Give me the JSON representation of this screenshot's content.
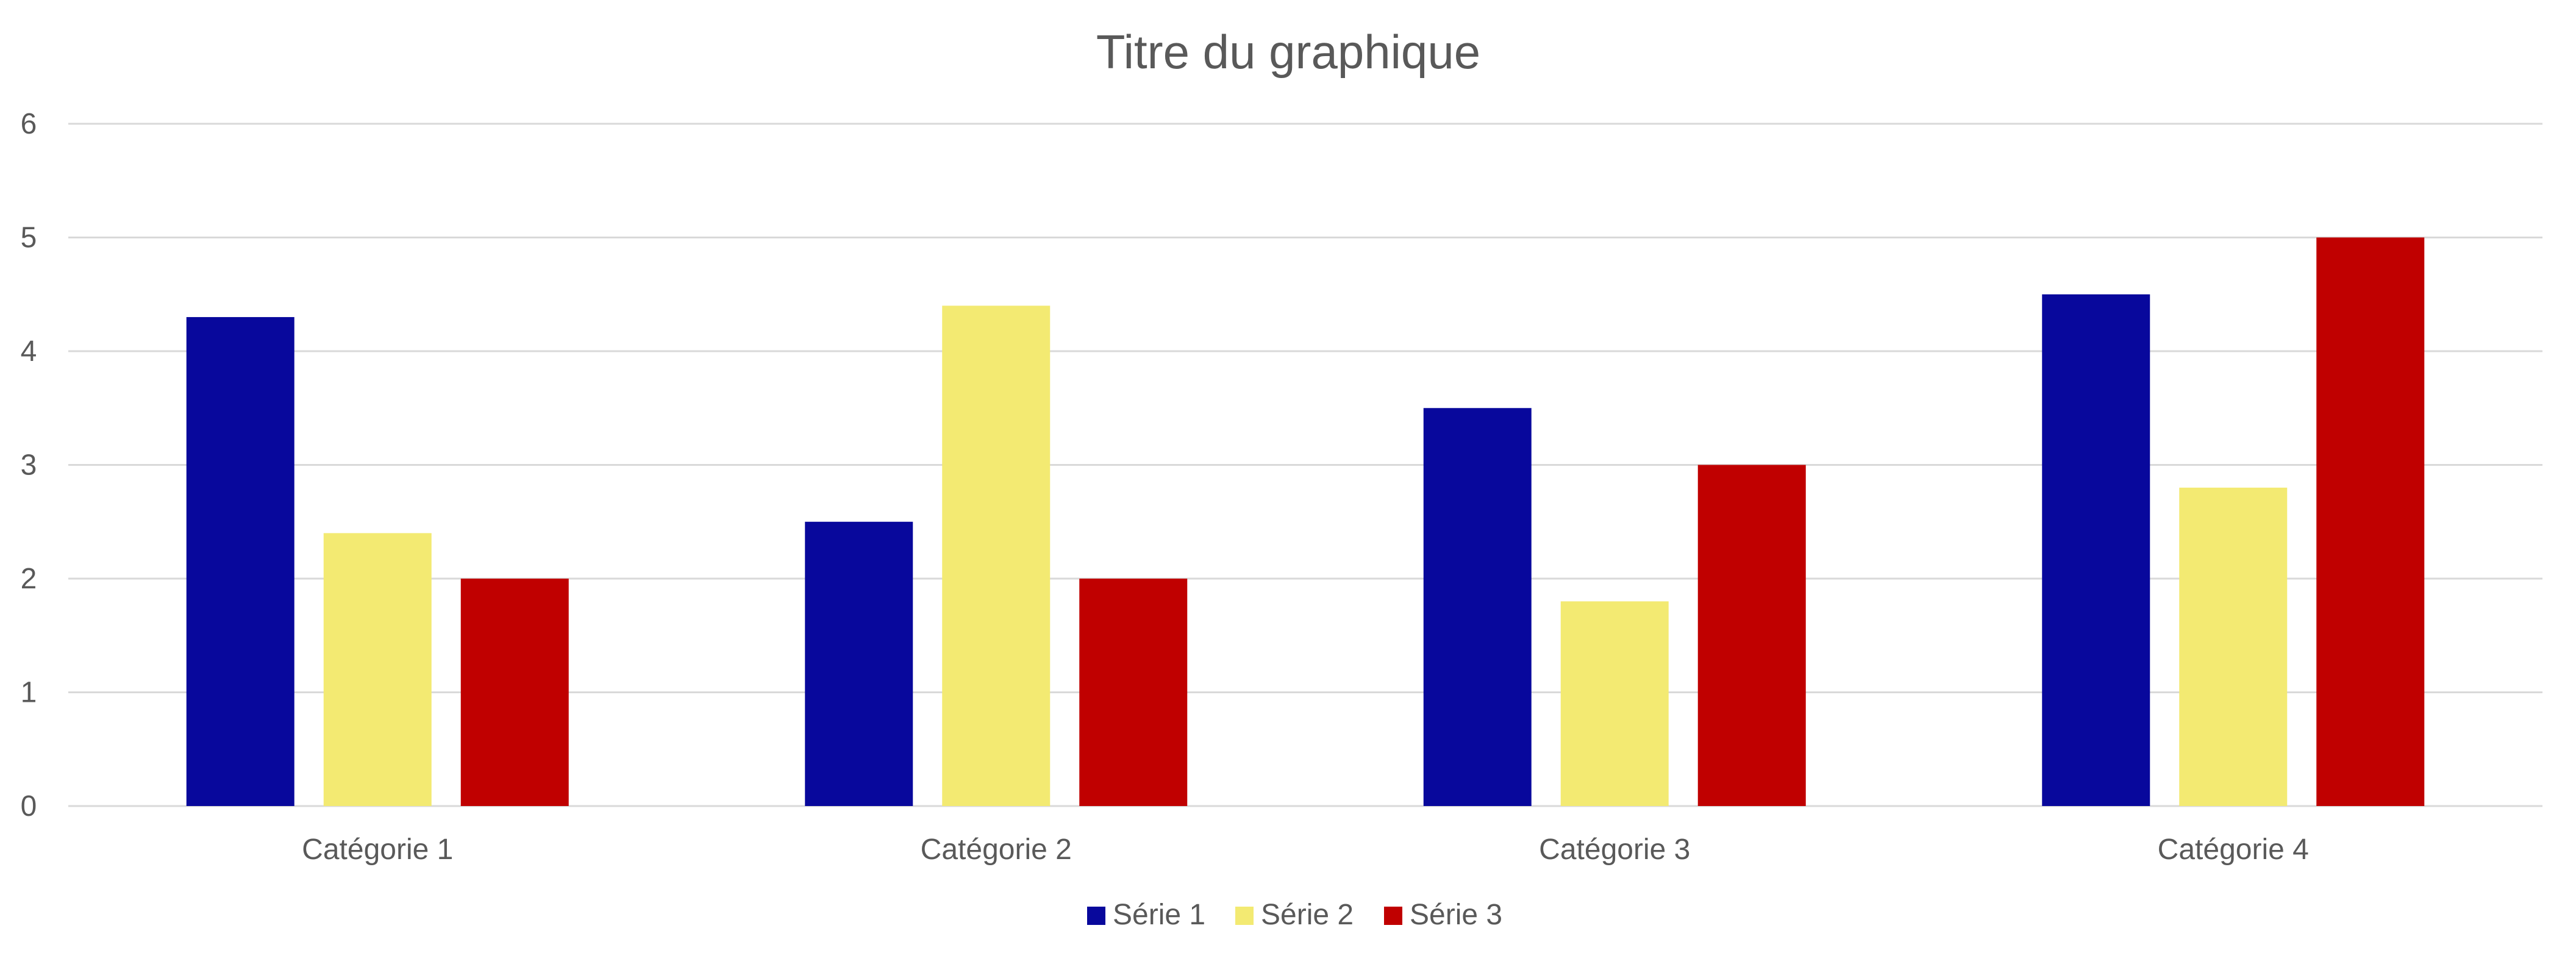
{
  "chart_data": {
    "type": "bar",
    "title": "Titre du graphique",
    "xlabel": "",
    "ylabel": "",
    "categories": [
      "Catégorie 1",
      "Catégorie 2",
      "Catégorie 3",
      "Catégorie 4"
    ],
    "series": [
      {
        "name": "Série 1",
        "color": "#08089C",
        "values": [
          4.3,
          2.5,
          3.5,
          4.5
        ]
      },
      {
        "name": "Série 2",
        "color": "#F3EA72",
        "values": [
          2.4,
          4.4,
          1.8,
          2.8
        ]
      },
      {
        "name": "Série 3",
        "color": "#C00000",
        "values": [
          2.0,
          2.0,
          3.0,
          5.0
        ]
      }
    ],
    "ylim": [
      0,
      6
    ],
    "yticks": [
      "0",
      "1",
      "2",
      "3",
      "4",
      "5",
      "6"
    ],
    "grid": "horizontal",
    "legend": "bottom-center",
    "text_color": "#595959",
    "grid_color": "#D9D9D9"
  }
}
